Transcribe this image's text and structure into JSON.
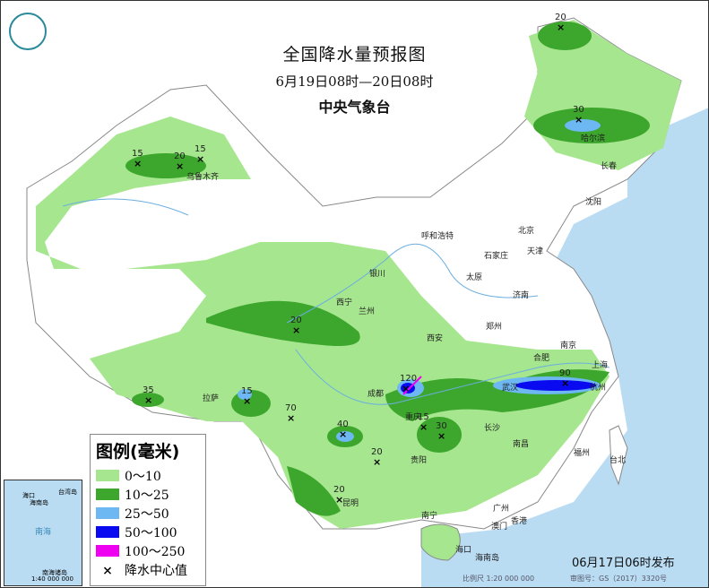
{
  "header": {
    "title": "全国降水量预报图",
    "period": "6月19日08时—20日08时",
    "issuer": "中央气象台"
  },
  "legend": {
    "title": "图例(毫米)",
    "items": [
      {
        "label": "0～10",
        "color": "#a6e68f"
      },
      {
        "label": "10～25",
        "color": "#3da62d"
      },
      {
        "label": "25～50",
        "color": "#6db8f2"
      },
      {
        "label": "50～100",
        "color": "#0a0af0"
      },
      {
        "label": "100～250",
        "color": "#f000f0"
      }
    ],
    "center_label": "降水中心值"
  },
  "colors": {
    "sea": "#b9dcf3",
    "land": "#ffffff"
  },
  "cities": [
    "哈尔滨",
    "长春",
    "沈阳",
    "北京",
    "天津",
    "呼和浩特",
    "石家庄",
    "太原",
    "济南",
    "银川",
    "西宁",
    "兰州",
    "郑州",
    "西安",
    "合肥",
    "南京",
    "上海",
    "武汉",
    "杭州",
    "成都",
    "重庆",
    "长沙",
    "南昌",
    "福州",
    "贵阳",
    "昆明",
    "南宁",
    "广州",
    "香港",
    "澳门",
    "台北",
    "拉萨",
    "乌鲁木齐",
    "海口",
    "海南岛"
  ],
  "rain_centers": [
    "20",
    "30",
    "15",
    "20",
    "15",
    "20",
    "35",
    "15",
    "70",
    "120",
    "90",
    "40",
    "15",
    "30",
    "20",
    "20"
  ],
  "inset": {
    "labels": [
      "海口",
      "海南岛",
      "台湾岛",
      "南海",
      "南海诸岛",
      "1:40 000 000"
    ]
  },
  "footer": {
    "published": "06月17日06时发布",
    "scale": "比例尺 1:20 000 000",
    "approval": "审图号：GS（2017）3320号"
  }
}
